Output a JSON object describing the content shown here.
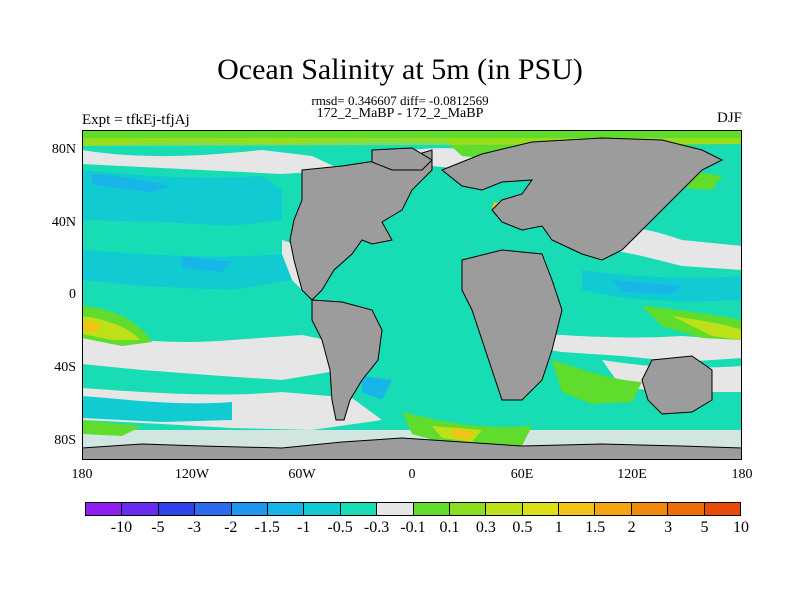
{
  "title": "Ocean Salinity at 5m (in PSU)",
  "stats": "rmsd= 0.346607 diff= -0.0812569",
  "comparison": "172_2_MaBP - 172_2_MaBP",
  "experiment": "Expt = tfkEj-tfjAj",
  "season": "DJF",
  "map": {
    "y_ticks": [
      "80N",
      "40N",
      "0",
      "40S",
      "80S"
    ],
    "x_ticks": [
      "180",
      "120W",
      "60W",
      "0",
      "60E",
      "120E",
      "180"
    ],
    "land_color": "#9c9c9c"
  },
  "colorbar": {
    "colors": [
      "#8f1ff0",
      "#6a2bee",
      "#2f44e6",
      "#2a6bf0",
      "#1f95f0",
      "#18b6e8",
      "#10ccd2",
      "#18dcb4",
      "#e6e6e6",
      "#5fdc2c",
      "#8cdc20",
      "#bde018",
      "#dce018",
      "#f2c214",
      "#f5a510",
      "#f08a0c",
      "#ec6e08",
      "#e84a0a"
    ],
    "labels": [
      "-10",
      "-5",
      "-3",
      "-2",
      "-1.5",
      "-1",
      "-0.5",
      "-0.3",
      "-0.1",
      "0.1",
      "0.3",
      "0.5",
      "1",
      "1.5",
      "2",
      "3",
      "5",
      "10"
    ]
  }
}
